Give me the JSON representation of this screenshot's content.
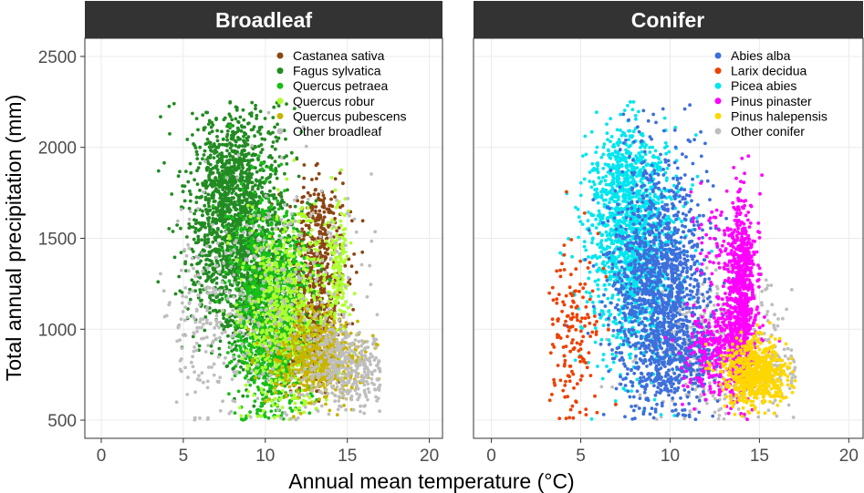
{
  "chart_data": {
    "type": "scatter",
    "xlabel": "Annual mean temperature (°C)",
    "ylabel": "Total annual precipitation (mm)",
    "xlim": [
      -1,
      20.8
    ],
    "ylim": [
      400,
      2600
    ],
    "xticks": [
      0,
      5,
      10,
      15,
      20
    ],
    "yticks": [
      500,
      1000,
      1500,
      2000,
      2500
    ],
    "grid": true,
    "legend_position": "top-right",
    "panels": [
      {
        "title": "Broadleaf",
        "series": [
          {
            "name": "Castanea sativa",
            "color": "#8b4513",
            "clusters": [
              {
                "cx": 13.0,
                "cy": 1300,
                "sx": 1.0,
                "sy": 230,
                "n": 420
              },
              {
                "cx": 12.8,
                "cy": 950,
                "sx": 0.7,
                "sy": 120,
                "n": 260
              },
              {
                "cx": 13.5,
                "cy": 1600,
                "sx": 0.5,
                "sy": 100,
                "n": 80
              }
            ]
          },
          {
            "name": "Fagus sylvatica",
            "color": "#228b22",
            "clusters": [
              {
                "cx": 8.2,
                "cy": 1550,
                "sx": 1.5,
                "sy": 300,
                "n": 1500
              },
              {
                "cx": 8.0,
                "cy": 1900,
                "sx": 1.0,
                "sy": 140,
                "n": 260
              },
              {
                "cx": 10.0,
                "cy": 1100,
                "sx": 1.2,
                "sy": 230,
                "n": 350
              }
            ]
          },
          {
            "name": "Quercus petraea",
            "color": "#18bf18",
            "clusters": [
              {
                "cx": 10.2,
                "cy": 1150,
                "sx": 1.2,
                "sy": 300,
                "n": 900
              },
              {
                "cx": 10.8,
                "cy": 800,
                "sx": 0.9,
                "sy": 110,
                "n": 250
              }
            ]
          },
          {
            "name": "Quercus robur",
            "color": "#adff2f",
            "clusters": [
              {
                "cx": 11.5,
                "cy": 1100,
                "sx": 1.4,
                "sy": 270,
                "n": 700
              },
              {
                "cx": 14.5,
                "cy": 1350,
                "sx": 0.3,
                "sy": 170,
                "n": 150
              }
            ]
          },
          {
            "name": "Quercus pubescens",
            "color": "#c8b400",
            "clusters": [
              {
                "cx": 13.3,
                "cy": 850,
                "sx": 1.3,
                "sy": 110,
                "n": 650
              }
            ]
          },
          {
            "name": "Other broadleaf",
            "color": "#bebebe",
            "clusters": [
              {
                "cx": 15.0,
                "cy": 800,
                "sx": 1.3,
                "sy": 110,
                "n": 350
              },
              {
                "cx": 6.2,
                "cy": 1050,
                "sx": 1.2,
                "sy": 280,
                "n": 160
              },
              {
                "cx": 11.0,
                "cy": 1200,
                "sx": 2.5,
                "sy": 350,
                "n": 250
              }
            ]
          }
        ],
        "legend": [
          "Castanea sativa",
          "Fagus sylvatica",
          "Quercus petraea",
          "Quercus robur",
          "Quercus pubescens",
          "Other broadleaf"
        ]
      },
      {
        "title": "Conifer",
        "series": [
          {
            "name": "Other conifer",
            "color": "#bebebe",
            "clusters": [
              {
                "cx": 12.5,
                "cy": 900,
                "sx": 2.2,
                "sy": 200,
                "n": 450
              },
              {
                "cx": 15.5,
                "cy": 750,
                "sx": 0.9,
                "sy": 70,
                "n": 120
              }
            ]
          },
          {
            "name": "Picea abies",
            "color": "#00e5ee",
            "clusters": [
              {
                "cx": 8.0,
                "cy": 1450,
                "sx": 1.3,
                "sy": 300,
                "n": 1300
              },
              {
                "cx": 7.5,
                "cy": 1850,
                "sx": 0.8,
                "sy": 120,
                "n": 230
              }
            ]
          },
          {
            "name": "Abies alba",
            "color": "#3d6fdc",
            "clusters": [
              {
                "cx": 9.4,
                "cy": 1250,
                "sx": 1.4,
                "sy": 330,
                "n": 1400
              },
              {
                "cx": 10.5,
                "cy": 850,
                "sx": 1.0,
                "sy": 100,
                "n": 250
              }
            ]
          },
          {
            "name": "Larix decidua",
            "color": "#ee4000",
            "clusters": [
              {
                "cx": 4.5,
                "cy": 1000,
                "sx": 0.8,
                "sy": 230,
                "n": 160
              }
            ]
          },
          {
            "name": "Pinus pinaster",
            "color": "#ff00ff",
            "clusters": [
              {
                "cx": 14.0,
                "cy": 1200,
                "sx": 0.35,
                "sy": 240,
                "n": 650
              },
              {
                "cx": 13.0,
                "cy": 900,
                "sx": 1.0,
                "sy": 130,
                "n": 400
              },
              {
                "cx": 13.0,
                "cy": 1450,
                "sx": 0.9,
                "sy": 150,
                "n": 90
              }
            ]
          },
          {
            "name": "Pinus halepensis",
            "color": "#ffd700",
            "clusters": [
              {
                "cx": 14.8,
                "cy": 760,
                "sx": 0.9,
                "sy": 90,
                "n": 650
              }
            ]
          }
        ],
        "legend": [
          "Abies alba",
          "Larix decidua",
          "Picea abies",
          "Pinus pinaster",
          "Pinus halepensis",
          "Other conifer"
        ]
      }
    ]
  }
}
